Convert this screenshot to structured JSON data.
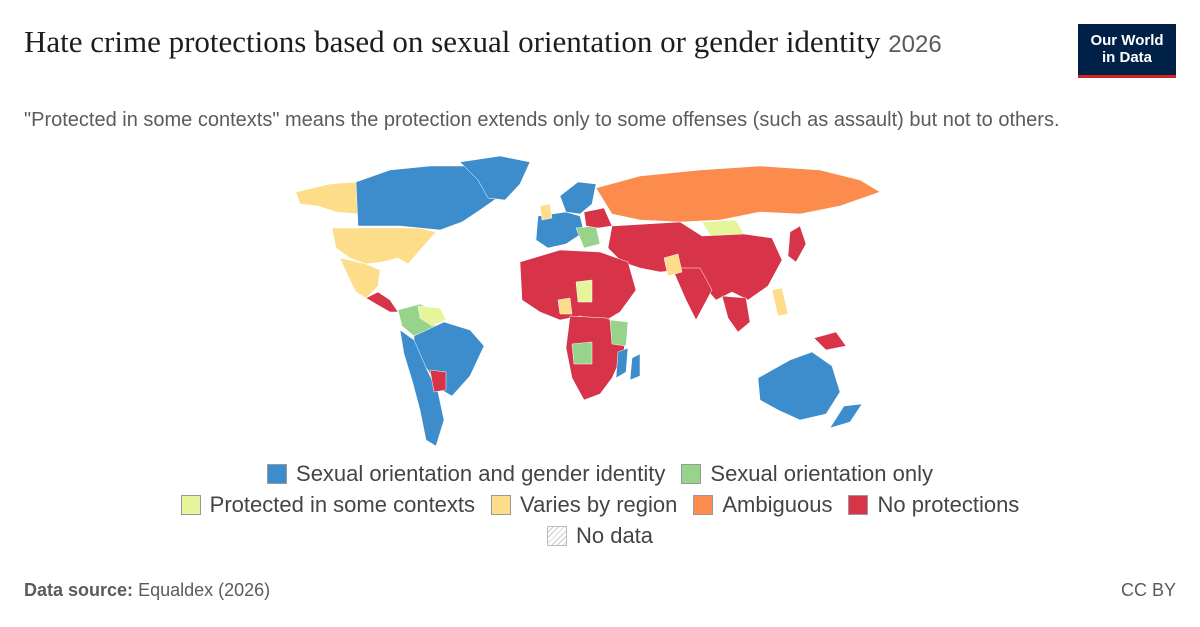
{
  "header": {
    "title": "Hate crime protections based on sexual orientation or gender identity",
    "year": "2026",
    "subtitle": "\"Protected in some contexts\" means the protection extends only to some offenses (such as assault) but not to others."
  },
  "logo": {
    "line1": "Our World",
    "line2": "in Data"
  },
  "legend": [
    {
      "label": "Sexual orientation and gender identity",
      "color": "#3d8ccc"
    },
    {
      "label": "Sexual orientation only",
      "color": "#97d38a"
    },
    {
      "label": "Protected in some contexts",
      "color": "#e6f59a"
    },
    {
      "label": "Varies by region",
      "color": "#fddc8a"
    },
    {
      "label": "Ambiguous",
      "color": "#fb8c4e"
    },
    {
      "label": "No protections",
      "color": "#d73449"
    },
    {
      "label": "No data",
      "color": "hatch"
    }
  ],
  "footer": {
    "source_label": "Data source:",
    "source_value": "Equaldex (2026)",
    "license": "CC BY"
  }
}
